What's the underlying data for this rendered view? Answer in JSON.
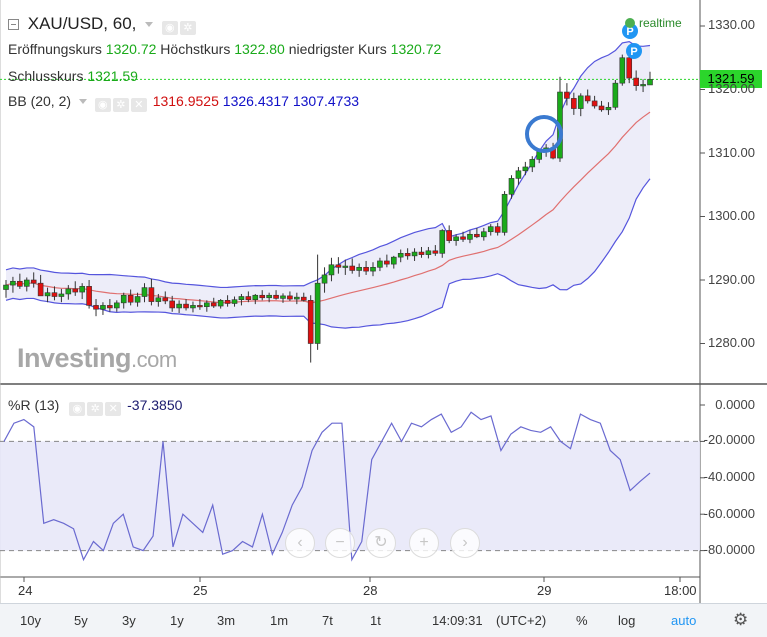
{
  "header": {
    "symbol": "XAU/USD, 60,",
    "open_label": "Eröffnungskurs",
    "open_value": "1320.72",
    "high_label": "Höchstkurs",
    "high_value": "1322.80",
    "low_label": "niedrigster Kurs",
    "low_value": "1320.72",
    "close_label": "Schlusskurs",
    "close_value": "1321.59",
    "realtime": "realtime",
    "last_price": "1321.59"
  },
  "bb": {
    "label": "BB (20, 2)",
    "middle": "1316.9525",
    "upper": "1326.4317",
    "lower": "1307.4733"
  },
  "wr": {
    "label": "%R (13)",
    "value": "-37.3850"
  },
  "watermark": {
    "brand": "Investing",
    "suffix": ".com"
  },
  "price_axis": [
    "1330.00",
    "1320.00",
    "1310.00",
    "1300.00",
    "1290.00",
    "1280.00"
  ],
  "wr_axis": [
    "0.0000",
    "-20.0000",
    "-40.0000",
    "-60.0000",
    "-80.0000"
  ],
  "time_axis": [
    "24",
    "25",
    "28",
    "29",
    "18:00"
  ],
  "toolbar": {
    "ranges": [
      "10y",
      "5y",
      "3y",
      "1y",
      "3m",
      "1m",
      "7t",
      "1t"
    ],
    "time": "14:09:31",
    "timezone": "(UTC+2)",
    "percent": "%",
    "log": "log",
    "auto": "auto"
  },
  "nav_icons": [
    "chevron-left-icon",
    "zoom-out-icon",
    "reset-icon",
    "zoom-in-icon",
    "chevron-right-icon"
  ],
  "colors": {
    "up": "#1aaa1a",
    "down": "#e01010",
    "band_fill": "#e8e8f8",
    "band_line": "#5555dd",
    "middle_line": "#e07070",
    "wr_line": "#6a6ad0",
    "last_price_bg": "#2bd52b"
  },
  "chart_data": [
    {
      "type": "candlestick",
      "title": "XAU/USD, 60,",
      "ylim": [
        1275,
        1332
      ],
      "candles": [
        {
          "o": 1288.5,
          "h": 1290.0,
          "l": 1287.2,
          "c": 1289.2
        },
        {
          "o": 1289.2,
          "h": 1290.5,
          "l": 1288.0,
          "c": 1289.8
        },
        {
          "o": 1289.8,
          "h": 1291.0,
          "l": 1288.6,
          "c": 1289.0
        },
        {
          "o": 1289.0,
          "h": 1290.4,
          "l": 1288.2,
          "c": 1290.0
        },
        {
          "o": 1290.0,
          "h": 1291.2,
          "l": 1288.8,
          "c": 1289.5
        },
        {
          "o": 1289.5,
          "h": 1290.8,
          "l": 1288.0,
          "c": 1287.5
        },
        {
          "o": 1287.5,
          "h": 1288.8,
          "l": 1286.5,
          "c": 1288.0
        },
        {
          "o": 1288.0,
          "h": 1289.0,
          "l": 1286.8,
          "c": 1287.4
        },
        {
          "o": 1287.4,
          "h": 1288.6,
          "l": 1286.5,
          "c": 1287.8
        },
        {
          "o": 1287.8,
          "h": 1289.2,
          "l": 1286.9,
          "c": 1288.6
        },
        {
          "o": 1288.6,
          "h": 1289.8,
          "l": 1287.5,
          "c": 1288.1
        },
        {
          "o": 1288.1,
          "h": 1289.5,
          "l": 1287.0,
          "c": 1289.0
        },
        {
          "o": 1289.0,
          "h": 1290.0,
          "l": 1285.5,
          "c": 1286.0
        },
        {
          "o": 1286.0,
          "h": 1287.0,
          "l": 1284.3,
          "c": 1285.4
        },
        {
          "o": 1285.4,
          "h": 1286.5,
          "l": 1284.5,
          "c": 1286.0
        },
        {
          "o": 1286.0,
          "h": 1287.0,
          "l": 1285.0,
          "c": 1285.6
        },
        {
          "o": 1285.6,
          "h": 1286.8,
          "l": 1285.0,
          "c": 1286.4
        },
        {
          "o": 1286.4,
          "h": 1288.0,
          "l": 1285.5,
          "c": 1287.6
        },
        {
          "o": 1287.6,
          "h": 1288.5,
          "l": 1286.0,
          "c": 1286.5
        },
        {
          "o": 1286.5,
          "h": 1288.0,
          "l": 1285.8,
          "c": 1287.4
        },
        {
          "o": 1287.4,
          "h": 1289.5,
          "l": 1286.5,
          "c": 1288.8
        },
        {
          "o": 1288.8,
          "h": 1290.2,
          "l": 1286.0,
          "c": 1286.6
        },
        {
          "o": 1286.6,
          "h": 1287.8,
          "l": 1285.8,
          "c": 1287.2
        },
        {
          "o": 1287.2,
          "h": 1288.2,
          "l": 1286.2,
          "c": 1286.7
        },
        {
          "o": 1286.7,
          "h": 1287.5,
          "l": 1285.0,
          "c": 1285.6
        },
        {
          "o": 1285.6,
          "h": 1286.8,
          "l": 1284.8,
          "c": 1286.2
        },
        {
          "o": 1286.2,
          "h": 1287.0,
          "l": 1285.2,
          "c": 1285.6
        },
        {
          "o": 1285.6,
          "h": 1286.6,
          "l": 1284.9,
          "c": 1286.0
        },
        {
          "o": 1286.0,
          "h": 1287.0,
          "l": 1285.3,
          "c": 1285.8
        },
        {
          "o": 1285.8,
          "h": 1286.8,
          "l": 1285.0,
          "c": 1286.4
        },
        {
          "o": 1286.4,
          "h": 1287.2,
          "l": 1285.6,
          "c": 1285.9
        },
        {
          "o": 1285.9,
          "h": 1287.0,
          "l": 1285.5,
          "c": 1286.8
        },
        {
          "o": 1286.8,
          "h": 1287.6,
          "l": 1285.8,
          "c": 1286.3
        },
        {
          "o": 1286.3,
          "h": 1287.4,
          "l": 1285.8,
          "c": 1286.9
        },
        {
          "o": 1286.9,
          "h": 1287.8,
          "l": 1286.0,
          "c": 1287.4
        },
        {
          "o": 1287.4,
          "h": 1288.2,
          "l": 1286.5,
          "c": 1286.9
        },
        {
          "o": 1286.9,
          "h": 1287.8,
          "l": 1286.2,
          "c": 1287.6
        },
        {
          "o": 1287.6,
          "h": 1288.4,
          "l": 1286.8,
          "c": 1287.2
        },
        {
          "o": 1287.2,
          "h": 1288.0,
          "l": 1286.5,
          "c": 1287.6
        },
        {
          "o": 1287.6,
          "h": 1288.4,
          "l": 1286.9,
          "c": 1287.1
        },
        {
          "o": 1287.1,
          "h": 1287.9,
          "l": 1286.4,
          "c": 1287.5
        },
        {
          "o": 1287.5,
          "h": 1288.2,
          "l": 1286.7,
          "c": 1287.0
        },
        {
          "o": 1287.0,
          "h": 1288.0,
          "l": 1286.2,
          "c": 1287.3
        },
        {
          "o": 1287.3,
          "h": 1288.0,
          "l": 1286.6,
          "c": 1286.8
        },
        {
          "o": 1286.8,
          "h": 1287.6,
          "l": 1277.0,
          "c": 1280.0
        },
        {
          "o": 1280.0,
          "h": 1294.0,
          "l": 1279.0,
          "c": 1289.5
        },
        {
          "o": 1289.5,
          "h": 1292.0,
          "l": 1288.0,
          "c": 1290.8
        },
        {
          "o": 1290.8,
          "h": 1293.5,
          "l": 1289.8,
          "c": 1292.4
        },
        {
          "o": 1292.4,
          "h": 1293.6,
          "l": 1291.0,
          "c": 1292.0
        },
        {
          "o": 1292.0,
          "h": 1293.2,
          "l": 1290.8,
          "c": 1292.2
        },
        {
          "o": 1292.2,
          "h": 1293.4,
          "l": 1291.0,
          "c": 1291.5
        },
        {
          "o": 1291.5,
          "h": 1292.6,
          "l": 1290.5,
          "c": 1292.0
        },
        {
          "o": 1292.0,
          "h": 1293.0,
          "l": 1290.8,
          "c": 1291.4
        },
        {
          "o": 1291.4,
          "h": 1292.8,
          "l": 1290.6,
          "c": 1292.0
        },
        {
          "o": 1292.0,
          "h": 1293.5,
          "l": 1291.4,
          "c": 1293.0
        },
        {
          "o": 1293.0,
          "h": 1294.0,
          "l": 1292.0,
          "c": 1292.5
        },
        {
          "o": 1292.5,
          "h": 1293.8,
          "l": 1291.8,
          "c": 1293.6
        },
        {
          "o": 1293.6,
          "h": 1294.8,
          "l": 1292.8,
          "c": 1294.2
        },
        {
          "o": 1294.2,
          "h": 1295.0,
          "l": 1293.2,
          "c": 1293.8
        },
        {
          "o": 1293.8,
          "h": 1295.0,
          "l": 1293.0,
          "c": 1294.4
        },
        {
          "o": 1294.4,
          "h": 1295.2,
          "l": 1293.5,
          "c": 1294.0
        },
        {
          "o": 1294.0,
          "h": 1295.2,
          "l": 1293.4,
          "c": 1294.6
        },
        {
          "o": 1294.6,
          "h": 1295.5,
          "l": 1293.8,
          "c": 1294.2
        },
        {
          "o": 1294.2,
          "h": 1298.0,
          "l": 1293.5,
          "c": 1297.8
        },
        {
          "o": 1297.8,
          "h": 1298.6,
          "l": 1295.8,
          "c": 1296.2
        },
        {
          "o": 1296.2,
          "h": 1297.2,
          "l": 1295.4,
          "c": 1296.8
        },
        {
          "o": 1296.8,
          "h": 1297.6,
          "l": 1296.0,
          "c": 1296.4
        },
        {
          "o": 1296.4,
          "h": 1297.8,
          "l": 1295.8,
          "c": 1297.2
        },
        {
          "o": 1297.2,
          "h": 1298.2,
          "l": 1296.6,
          "c": 1296.8
        },
        {
          "o": 1296.8,
          "h": 1298.2,
          "l": 1296.2,
          "c": 1297.6
        },
        {
          "o": 1297.6,
          "h": 1298.8,
          "l": 1297.0,
          "c": 1298.4
        },
        {
          "o": 1298.4,
          "h": 1299.0,
          "l": 1297.0,
          "c": 1297.5
        },
        {
          "o": 1297.5,
          "h": 1304.0,
          "l": 1297.0,
          "c": 1303.5
        },
        {
          "o": 1303.5,
          "h": 1306.5,
          "l": 1302.8,
          "c": 1306.0
        },
        {
          "o": 1306.0,
          "h": 1307.8,
          "l": 1305.0,
          "c": 1307.2
        },
        {
          "o": 1307.2,
          "h": 1308.6,
          "l": 1306.5,
          "c": 1307.8
        },
        {
          "o": 1307.8,
          "h": 1309.5,
          "l": 1307.0,
          "c": 1309.0
        },
        {
          "o": 1309.0,
          "h": 1310.6,
          "l": 1308.4,
          "c": 1310.2
        },
        {
          "o": 1310.2,
          "h": 1311.4,
          "l": 1309.4,
          "c": 1310.8
        },
        {
          "o": 1310.8,
          "h": 1311.6,
          "l": 1309.0,
          "c": 1309.2
        },
        {
          "o": 1309.2,
          "h": 1322.0,
          "l": 1308.6,
          "c": 1319.6
        },
        {
          "o": 1319.6,
          "h": 1321.0,
          "l": 1317.5,
          "c": 1318.6
        },
        {
          "o": 1318.6,
          "h": 1319.5,
          "l": 1316.0,
          "c": 1317.0
        },
        {
          "o": 1317.0,
          "h": 1319.4,
          "l": 1315.8,
          "c": 1319.0
        },
        {
          "o": 1319.0,
          "h": 1320.0,
          "l": 1317.8,
          "c": 1318.2
        },
        {
          "o": 1318.2,
          "h": 1319.0,
          "l": 1317.0,
          "c": 1317.4
        },
        {
          "o": 1317.4,
          "h": 1318.2,
          "l": 1316.5,
          "c": 1316.8
        },
        {
          "o": 1316.8,
          "h": 1318.0,
          "l": 1316.0,
          "c": 1317.2
        },
        {
          "o": 1317.2,
          "h": 1321.5,
          "l": 1316.8,
          "c": 1321.0
        },
        {
          "o": 1321.0,
          "h": 1325.5,
          "l": 1320.6,
          "c": 1325.0
        },
        {
          "o": 1325.0,
          "h": 1327.0,
          "l": 1321.0,
          "c": 1321.8
        },
        {
          "o": 1321.8,
          "h": 1323.0,
          "l": 1319.8,
          "c": 1320.6
        },
        {
          "o": 1320.6,
          "h": 1321.6,
          "l": 1319.6,
          "c": 1320.8
        },
        {
          "o": 1320.72,
          "h": 1322.8,
          "l": 1320.72,
          "c": 1321.59
        }
      ],
      "bollinger": {
        "period": 20,
        "stddev": 2,
        "middle": 1316.9525,
        "upper": 1326.4317,
        "lower": 1307.4733
      },
      "last_price": 1321.59,
      "ylabels": [
        "1330.00",
        "1320.00",
        "1310.00",
        "1300.00",
        "1290.00",
        "1280.00"
      ]
    },
    {
      "type": "line",
      "title": "%R (13)",
      "ylim": [
        -100,
        5
      ],
      "bands": [
        -20,
        -80
      ],
      "values": [
        -20,
        -10,
        -8,
        -12,
        -65,
        -63,
        -65,
        -68,
        -85,
        -75,
        -80,
        -65,
        -60,
        -78,
        -80,
        -72,
        -20,
        -78,
        -60,
        -65,
        -70,
        -55,
        -82,
        -80,
        -75,
        -78,
        -60,
        -82,
        -70,
        -55,
        -45,
        -25,
        -15,
        -10,
        -10,
        -85,
        -75,
        -30,
        -20,
        -10,
        -20,
        -10,
        -12,
        -8,
        -5,
        -15,
        -12,
        -4,
        -8,
        -6,
        -25,
        -16,
        -12,
        -14,
        -15,
        -12,
        -20,
        -24,
        -5,
        -8,
        -10,
        -25,
        -30,
        -47,
        -42,
        -37.385
      ]
    }
  ]
}
